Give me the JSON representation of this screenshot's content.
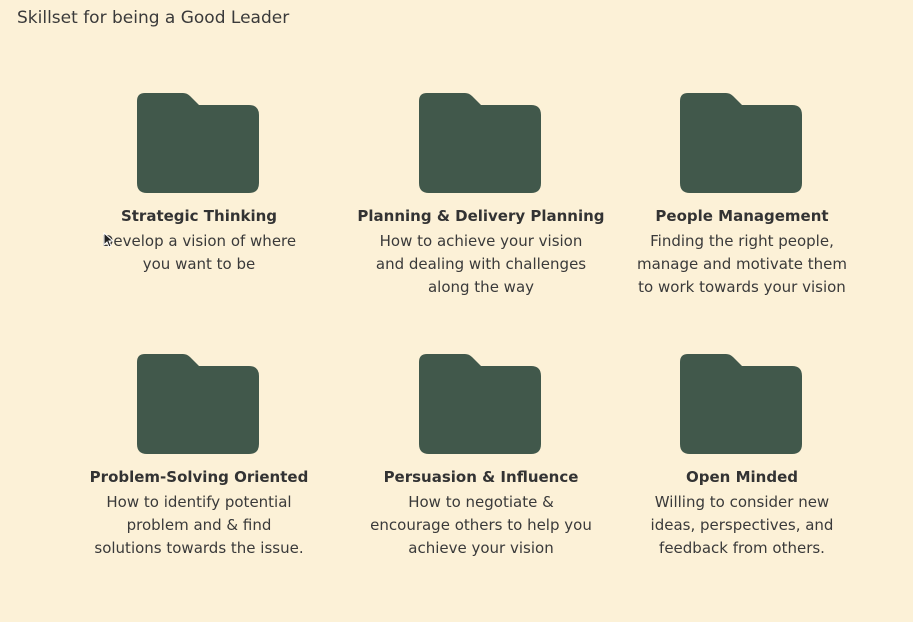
{
  "page": {
    "title": "Skillset for being a Good Leader"
  },
  "colors": {
    "background": "#fcf1d7",
    "folder": "#41584b",
    "text": "#333333"
  },
  "cards": [
    {
      "icon": "folder-icon",
      "title": "Strategic Thinking",
      "description": "Develop a vision of where you want to be"
    },
    {
      "icon": "folder-icon",
      "title": "Planning & Delivery Planning",
      "description": "How to achieve your vision and dealing with challenges along the way"
    },
    {
      "icon": "folder-icon",
      "title": "People Management",
      "description": "Finding the right people, manage and motivate them to work towards your vision"
    },
    {
      "icon": "folder-icon",
      "title": "Problem-Solving Oriented",
      "description": "How to identify potential problem and & find solutions towards the issue."
    },
    {
      "icon": "folder-icon",
      "title": "Persuasion & Influence",
      "description": "How to negotiate & encourage others to help you achieve your vision"
    },
    {
      "icon": "folder-icon",
      "title": "Open Minded",
      "description": "Willing to consider new ideas, perspectives, and feedback from others."
    }
  ]
}
